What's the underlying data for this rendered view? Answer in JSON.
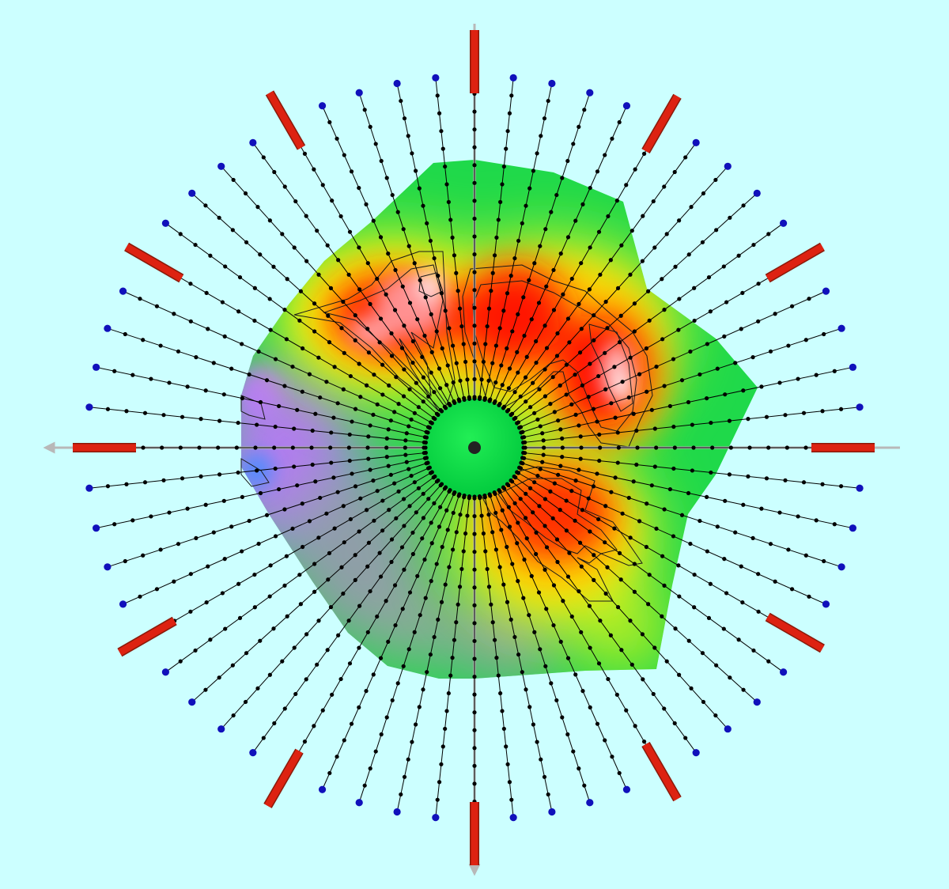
{
  "diagram": {
    "type": "radial-heatmap",
    "ray_count": 60,
    "marker_count": 12,
    "points_per_ray": 18,
    "colors": {
      "background": "#ccffff",
      "axis": "#b8b8b8",
      "ray_line": "#000000",
      "ray_point": "#000000",
      "ray_endpoint": "#1010bb",
      "marker": "#dd2211",
      "center_disc": "#00dd44",
      "center_dot": "#222222",
      "heat_scale": [
        "#bb88ff",
        "#00dd44",
        "#66ee22",
        "#ffff00",
        "#ff0000",
        "#ffb0b0",
        "#ffffff"
      ]
    },
    "heat_regions": [
      {
        "name": "upper-left-hot-zone",
        "level": "high"
      },
      {
        "name": "upper-right-hot-zone",
        "level": "high"
      },
      {
        "name": "lower-right-hot-zone",
        "level": "medium-high"
      },
      {
        "name": "left-cool-zone",
        "level": "low"
      }
    ]
  }
}
